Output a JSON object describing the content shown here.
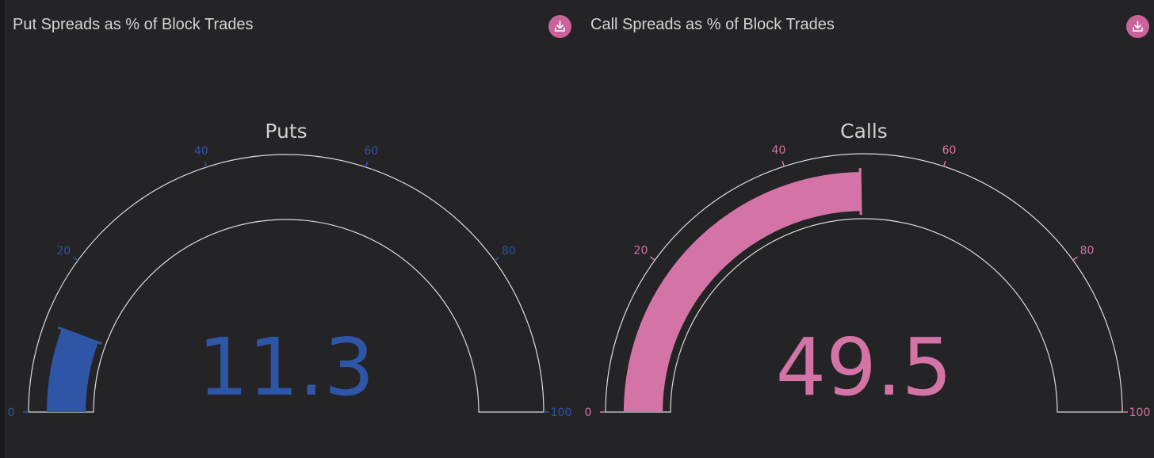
{
  "chart_data": [
    {
      "type": "gauge",
      "panel_title": "Put Spreads as % of Block Trades",
      "title": "Puts",
      "value": 11.3,
      "value_label": "11.3",
      "range": [
        0,
        100
      ],
      "ticks": [
        0,
        20,
        40,
        60,
        80,
        100
      ],
      "tick_labels": [
        "0",
        "20",
        "40",
        "60",
        "80",
        "100"
      ],
      "color": "#2e55a6",
      "download_icon": "download-icon"
    },
    {
      "type": "gauge",
      "panel_title": "Call Spreads as % of Block Trades",
      "title": "Calls",
      "value": 49.5,
      "value_label": "49.5",
      "range": [
        0,
        100
      ],
      "ticks": [
        0,
        20,
        40,
        60,
        80,
        100
      ],
      "tick_labels": [
        "0",
        "20",
        "40",
        "60",
        "80",
        "100"
      ],
      "color": "#d474a6",
      "download_icon": "download-icon"
    }
  ]
}
